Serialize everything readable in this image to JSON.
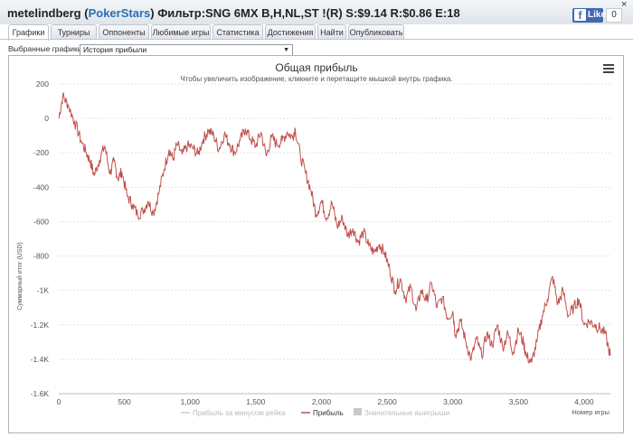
{
  "header": {
    "user": "metelindberg",
    "site": "PokerStars",
    "filter": "Фильтр:SNG 6MX B,H,NL,ST !(R) S:$9.14 R:$0.86 E:18",
    "fb_like": "Like",
    "fb_count": "0",
    "close": "×"
  },
  "tabs": [
    {
      "label": "Графики",
      "active": true
    },
    {
      "label": "Турниры"
    },
    {
      "label": "Оппоненты"
    },
    {
      "label": "Любимые игры"
    },
    {
      "label": "Статистика"
    },
    {
      "label": "Достижения"
    },
    {
      "label": "Найти"
    },
    {
      "label": "Опубликовать"
    }
  ],
  "selector": {
    "label": "Выбранные графики:",
    "value": "История прибыли"
  },
  "menu_icon": "hamburger-menu-icon",
  "colors": {
    "profit_line": "#c0504d",
    "rake_line": "#cccccc",
    "big_wins": "#c8c8c8"
  },
  "chart_data": {
    "type": "line",
    "title": "Общая прибыль",
    "subtitle": "Чтобы увеличить изображение, кликните и перетащите мышкой внутрь графика.",
    "xlabel": "Номер игры",
    "ylabel": "Суммарный итог (USD)",
    "xlim": [
      0,
      4200
    ],
    "ylim": [
      -1600,
      200
    ],
    "xticks": [
      "0",
      "500",
      "1,000",
      "1,500",
      "2,000",
      "2,500",
      "3,000",
      "3,500",
      "4,000"
    ],
    "yticks": [
      "200",
      "0",
      "-200",
      "-400",
      "-600",
      "-800",
      "-1K",
      "-1.2K",
      "-1.4K",
      "-1.6K"
    ],
    "legend": [
      "Прибыль за минусом рейка",
      "Прибыль",
      "Значительные выигрыши"
    ],
    "legend_position": "bottom",
    "grid": true,
    "series": [
      {
        "name": "Прибыль",
        "x": [
          0,
          30,
          70,
          120,
          170,
          210,
          240,
          270,
          310,
          350,
          390,
          420,
          450,
          480,
          520,
          560,
          600,
          640,
          680,
          720,
          760,
          800,
          840,
          870,
          900,
          940,
          980,
          1020,
          1060,
          1100,
          1140,
          1180,
          1220,
          1260,
          1300,
          1340,
          1380,
          1420,
          1460,
          1500,
          1540,
          1580,
          1620,
          1660,
          1700,
          1740,
          1780,
          1800,
          1840,
          1880,
          1920,
          1960,
          2000,
          2040,
          2080,
          2120,
          2160,
          2200,
          2240,
          2280,
          2320,
          2360,
          2400,
          2440,
          2480,
          2520,
          2560,
          2600,
          2640,
          2680,
          2720,
          2760,
          2800,
          2840,
          2880,
          2920,
          2960,
          3000,
          3020,
          3060,
          3100,
          3140,
          3180,
          3220,
          3260,
          3300,
          3340,
          3380,
          3420,
          3460,
          3500,
          3540,
          3560,
          3600,
          3640,
          3680,
          3720,
          3760,
          3800,
          3840,
          3880,
          3920,
          3960,
          4000,
          4040,
          4080,
          4120,
          4160,
          4200
        ],
        "y": [
          0,
          130,
          80,
          -20,
          -130,
          -200,
          -250,
          -330,
          -240,
          -160,
          -320,
          -250,
          -350,
          -310,
          -450,
          -500,
          -560,
          -540,
          -480,
          -550,
          -440,
          -300,
          -180,
          -240,
          -150,
          -210,
          -160,
          -170,
          -210,
          -120,
          -70,
          -100,
          -180,
          -90,
          -150,
          -200,
          -130,
          -60,
          -120,
          -160,
          -80,
          -220,
          -110,
          -150,
          -130,
          -80,
          -110,
          -60,
          -220,
          -320,
          -420,
          -560,
          -480,
          -580,
          -490,
          -630,
          -580,
          -680,
          -640,
          -720,
          -660,
          -740,
          -780,
          -730,
          -780,
          -880,
          -1000,
          -930,
          -1050,
          -980,
          -1120,
          -1000,
          -1060,
          -960,
          -1100,
          -1040,
          -1160,
          -1120,
          -1260,
          -1180,
          -1300,
          -1400,
          -1280,
          -1380,
          -1250,
          -1320,
          -1200,
          -1330,
          -1250,
          -1360,
          -1230,
          -1310,
          -1380,
          -1420,
          -1300,
          -1150,
          -1050,
          -920,
          -1080,
          -1000,
          -1150,
          -1100,
          -1050,
          -1200,
          -1180,
          -1200,
          -1220,
          -1250,
          -1380
        ]
      },
      {
        "name": "Прибыль за минусом рейка",
        "visible": false
      }
    ]
  }
}
